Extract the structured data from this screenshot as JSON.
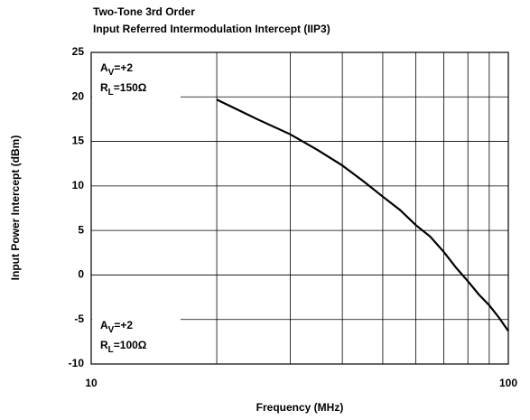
{
  "chart_data": {
    "type": "line",
    "title": [
      "Two-Tone 3rd Order",
      "Input Referred Intermodulation Intercept (IIP3)"
    ],
    "xlabel": "Frequency (MHz)",
    "ylabel": "Input Power Intercept (dBm)",
    "xscale": "log",
    "xlim": [
      10,
      100
    ],
    "xticks": [
      10,
      100
    ],
    "xminor": [
      20,
      30,
      40,
      50,
      60,
      70,
      80,
      90
    ],
    "ylim": [
      -10,
      25
    ],
    "yticks": [
      -10,
      -5,
      0,
      5,
      10,
      15,
      20,
      25
    ],
    "grid": true,
    "annotations": [
      {
        "lines": [
          [
            "A",
            "V",
            "=+2"
          ],
          [
            "R",
            "L",
            "=150Ω"
          ]
        ],
        "corner": "top-left"
      },
      {
        "lines": [
          [
            "A",
            "V",
            "=+2"
          ],
          [
            "R",
            "L",
            "=100Ω"
          ]
        ],
        "corner": "bottom-left"
      }
    ],
    "series": [
      {
        "name": "IIP3",
        "color": "#000000",
        "x": [
          20,
          25,
          30,
          35,
          40,
          45,
          50,
          55,
          60,
          65,
          70,
          75,
          80,
          85,
          90,
          95,
          100
        ],
        "values": [
          19.7,
          17.5,
          15.8,
          14.0,
          12.3,
          10.5,
          8.8,
          7.3,
          5.6,
          4.3,
          2.6,
          0.8,
          -0.7,
          -2.2,
          -3.4,
          -4.8,
          -6.3
        ]
      }
    ]
  }
}
